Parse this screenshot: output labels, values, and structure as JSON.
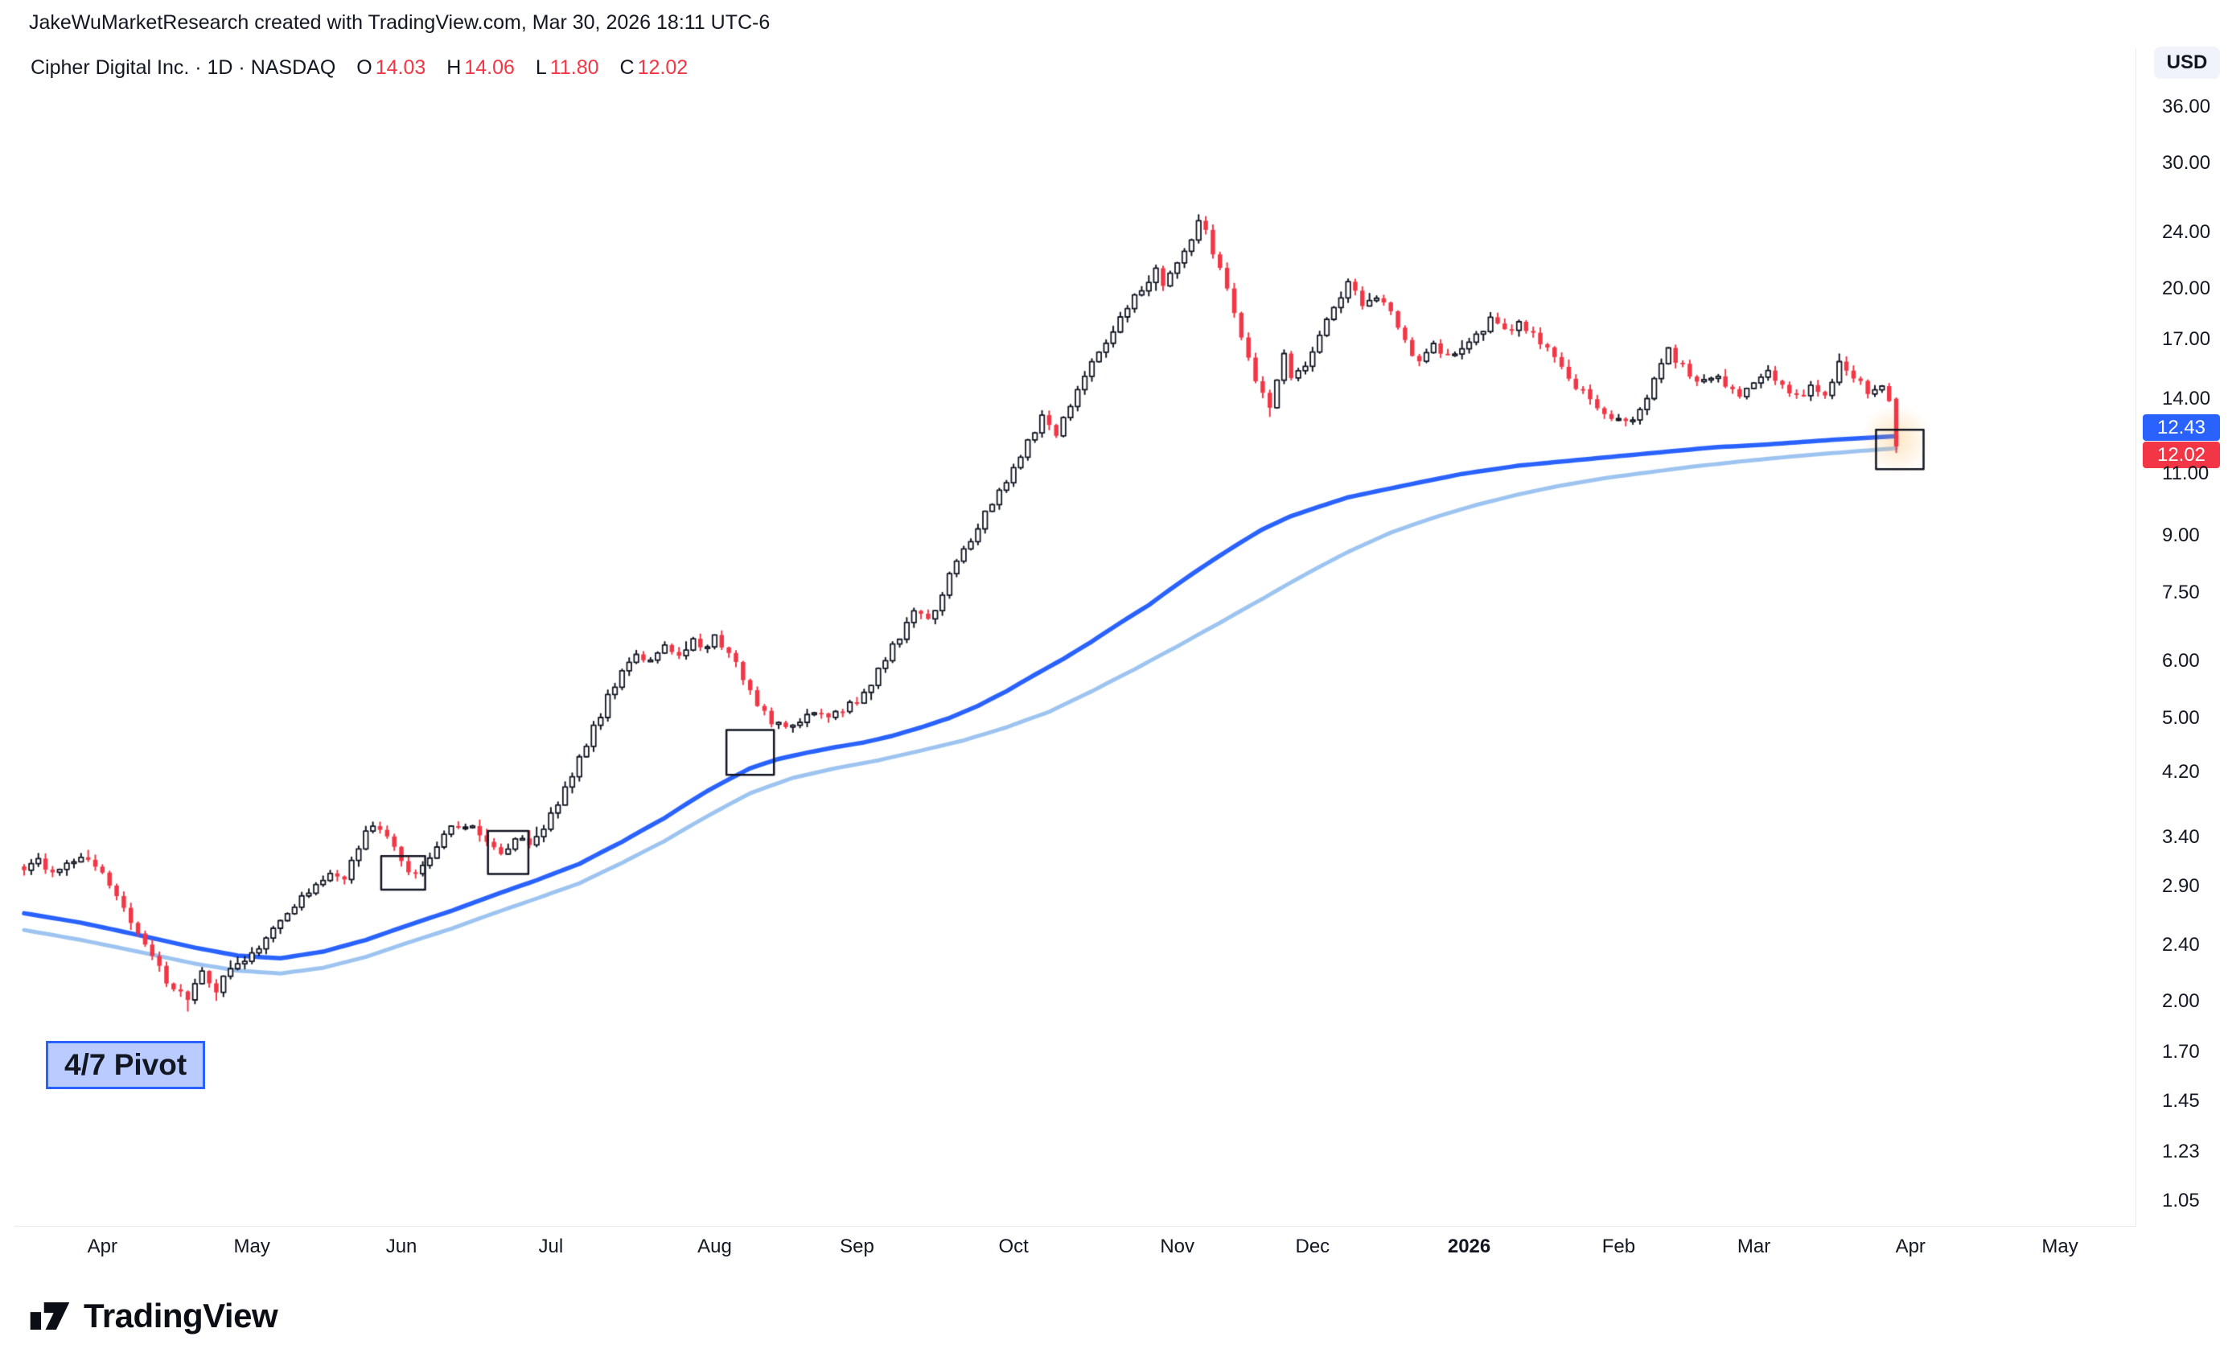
{
  "header": {
    "credit": "JakeWuMarketResearch created with TradingView.com, Mar 30, 2026 18:11 UTC-6"
  },
  "legend": {
    "title": "Cipher Digital Inc. · 1D · NASDAQ",
    "o_label": "O",
    "open": "14.03",
    "h_label": "H",
    "high": "14.06",
    "l_label": "L",
    "low": "11.80",
    "c_label": "C",
    "close": "12.02"
  },
  "price_axis": {
    "currency": "USD",
    "badges": [
      {
        "label": "12.43",
        "color": "#2962ff",
        "value": 12.43
      },
      {
        "label": "12.02",
        "color": "#f23645",
        "value": 12.02
      }
    ]
  },
  "time_axis": {
    "labels": [
      {
        "d": 11,
        "label": "Apr"
      },
      {
        "d": 32,
        "label": "May"
      },
      {
        "d": 53,
        "label": "Jun"
      },
      {
        "d": 74,
        "label": "Jul"
      },
      {
        "d": 97,
        "label": "Aug"
      },
      {
        "d": 117,
        "label": "Sep"
      },
      {
        "d": 139,
        "label": "Oct"
      },
      {
        "d": 162,
        "label": "Nov"
      },
      {
        "d": 181,
        "label": "Dec"
      },
      {
        "d": 203,
        "label": "2026",
        "bold": true
      },
      {
        "d": 224,
        "label": "Feb"
      },
      {
        "d": 243,
        "label": "Mar"
      },
      {
        "d": 265,
        "label": "Apr"
      },
      {
        "d": 286,
        "label": "May"
      }
    ]
  },
  "annotations": {
    "pivot_label": "4/7 Pivot",
    "boxes": [
      {
        "d1": 50.5,
        "d2": 56,
        "p1": 2.87,
        "p2": 3.2
      },
      {
        "d1": 65.5,
        "d2": 70.5,
        "p1": 3.02,
        "p2": 3.47
      },
      {
        "d1": 99,
        "d2": 105,
        "p1": 4.16,
        "p2": 4.81
      },
      {
        "d1": 260.5,
        "d2": 266.5,
        "p1": 11.17,
        "p2": 12.69
      }
    ]
  },
  "footer": {
    "brand": "TradingView"
  },
  "chart_data": {
    "type": "candlestick",
    "title": "Cipher Digital Inc. · 1D · NASDAQ",
    "price_scale": "log",
    "currency": "USD",
    "days": 264,
    "x_unit": "trading_day_index_from_2025-03-17",
    "ylim": [
      1.0,
      43.0
    ],
    "price_ticks": [
      [
        36,
        "36.00"
      ],
      [
        30,
        "30.00"
      ],
      [
        24,
        "24.00"
      ],
      [
        20,
        "20.00"
      ],
      [
        17,
        "17.00"
      ],
      [
        14,
        "14.00"
      ],
      [
        11,
        "11.00"
      ],
      [
        9,
        "9.00"
      ],
      [
        7.5,
        "7.50"
      ],
      [
        6,
        "6.00"
      ],
      [
        5,
        "5.00"
      ],
      [
        4.2,
        "4.20"
      ],
      [
        3.4,
        "3.40"
      ],
      [
        2.9,
        "2.90"
      ],
      [
        2.4,
        "2.40"
      ],
      [
        2,
        "2.00"
      ],
      [
        1.7,
        "1.70"
      ],
      [
        1.45,
        "1.45"
      ],
      [
        1.23,
        "1.23"
      ],
      [
        1.05,
        "1.05"
      ]
    ],
    "ohlc_last_bar": {
      "open": 14.03,
      "high": 14.06,
      "low": 11.8,
      "close": 12.02
    },
    "close_path": [
      [
        0,
        3.05
      ],
      [
        2,
        3.18
      ],
      [
        4,
        3.0
      ],
      [
        6,
        3.1
      ],
      [
        8,
        3.22
      ],
      [
        10,
        3.08
      ],
      [
        12,
        2.92
      ],
      [
        14,
        2.72
      ],
      [
        16,
        2.48
      ],
      [
        18,
        2.3
      ],
      [
        20,
        2.14
      ],
      [
        23,
        2.02
      ],
      [
        25,
        2.18
      ],
      [
        27,
        2.08
      ],
      [
        29,
        2.22
      ],
      [
        32,
        2.32
      ],
      [
        35,
        2.52
      ],
      [
        38,
        2.72
      ],
      [
        41,
        2.92
      ],
      [
        43,
        3.06
      ],
      [
        45,
        2.96
      ],
      [
        47,
        3.32
      ],
      [
        49,
        3.56
      ],
      [
        51,
        3.42
      ],
      [
        53,
        3.12
      ],
      [
        55,
        3.03
      ],
      [
        57,
        3.2
      ],
      [
        59,
        3.4
      ],
      [
        61,
        3.56
      ],
      [
        63,
        3.48
      ],
      [
        65,
        3.34
      ],
      [
        67,
        3.22
      ],
      [
        69,
        3.4
      ],
      [
        71,
        3.32
      ],
      [
        74,
        3.64
      ],
      [
        76,
        3.96
      ],
      [
        78,
        4.36
      ],
      [
        80,
        4.82
      ],
      [
        82,
        5.32
      ],
      [
        84,
        5.82
      ],
      [
        86,
        6.12
      ],
      [
        88,
        6.05
      ],
      [
        90,
        6.28
      ],
      [
        92,
        6.15
      ],
      [
        94,
        6.42
      ],
      [
        96,
        6.3
      ],
      [
        97,
        6.52
      ],
      [
        99,
        6.2
      ],
      [
        101,
        5.72
      ],
      [
        103,
        5.22
      ],
      [
        105,
        4.95
      ],
      [
        107,
        4.8
      ],
      [
        109,
        4.92
      ],
      [
        111,
        5.06
      ],
      [
        113,
        4.96
      ],
      [
        115,
        5.12
      ],
      [
        117,
        5.32
      ],
      [
        119,
        5.62
      ],
      [
        121,
        6.02
      ],
      [
        123,
        6.52
      ],
      [
        125,
        7.12
      ],
      [
        127,
        6.82
      ],
      [
        129,
        7.52
      ],
      [
        131,
        8.22
      ],
      [
        133,
        8.92
      ],
      [
        135,
        9.62
      ],
      [
        137,
        10.42
      ],
      [
        139,
        11.22
      ],
      [
        141,
        12.22
      ],
      [
        143,
        13.22
      ],
      [
        145,
        12.42
      ],
      [
        147,
        13.82
      ],
      [
        149,
        15.02
      ],
      [
        151,
        16.22
      ],
      [
        153,
        17.52
      ],
      [
        155,
        18.82
      ],
      [
        157,
        20.02
      ],
      [
        159,
        21.22
      ],
      [
        160,
        20.02
      ],
      [
        162,
        21.52
      ],
      [
        164,
        23.52
      ],
      [
        165,
        24.82
      ],
      [
        166,
        24.02
      ],
      [
        167,
        22.52
      ],
      [
        169,
        20.02
      ],
      [
        171,
        17.02
      ],
      [
        173,
        14.82
      ],
      [
        175,
        13.62
      ],
      [
        176,
        15.02
      ],
      [
        177,
        16.02
      ],
      [
        178,
        14.82
      ],
      [
        180,
        15.52
      ],
      [
        181,
        16.52
      ],
      [
        183,
        18.02
      ],
      [
        185,
        19.52
      ],
      [
        186,
        20.32
      ],
      [
        188,
        19.02
      ],
      [
        190,
        19.62
      ],
      [
        192,
        18.42
      ],
      [
        194,
        16.82
      ],
      [
        196,
        15.62
      ],
      [
        198,
        16.62
      ],
      [
        200,
        16.02
      ],
      [
        202,
        16.62
      ],
      [
        204,
        17.22
      ],
      [
        206,
        18.02
      ],
      [
        208,
        17.52
      ],
      [
        210,
        17.92
      ],
      [
        212,
        17.32
      ],
      [
        214,
        16.52
      ],
      [
        216,
        15.52
      ],
      [
        218,
        14.62
      ],
      [
        220,
        14.02
      ],
      [
        222,
        13.52
      ],
      [
        225,
        12.92
      ],
      [
        227,
        13.62
      ],
      [
        229,
        14.82
      ],
      [
        231,
        16.32
      ],
      [
        233,
        15.52
      ],
      [
        235,
        14.72
      ],
      [
        237,
        15.12
      ],
      [
        239,
        14.62
      ],
      [
        241,
        14.22
      ],
      [
        243,
        14.82
      ],
      [
        245,
        15.22
      ],
      [
        247,
        14.52
      ],
      [
        249,
        14.12
      ],
      [
        251,
        14.52
      ],
      [
        253,
        14.22
      ],
      [
        255,
        15.62
      ],
      [
        257,
        14.92
      ],
      [
        259,
        14.42
      ],
      [
        261,
        14.62
      ],
      [
        262,
        13.92
      ],
      [
        263,
        12.02
      ]
    ],
    "wick_overrides": [
      [
        23,
        "l",
        1.94
      ],
      [
        165,
        "h",
        25.4
      ],
      [
        175,
        "l",
        13.25
      ],
      [
        225,
        "l",
        12.85
      ],
      [
        255,
        "h",
        16.2
      ]
    ],
    "ma_fast": {
      "name": "moving-average-dark-blue",
      "color": "#2962ff",
      "last_value": 12.43,
      "points": [
        [
          0,
          2.66
        ],
        [
          8,
          2.58
        ],
        [
          16,
          2.48
        ],
        [
          24,
          2.38
        ],
        [
          30,
          2.32
        ],
        [
          36,
          2.3
        ],
        [
          42,
          2.35
        ],
        [
          48,
          2.44
        ],
        [
          54,
          2.56
        ],
        [
          60,
          2.68
        ],
        [
          66,
          2.82
        ],
        [
          72,
          2.96
        ],
        [
          78,
          3.12
        ],
        [
          84,
          3.35
        ],
        [
          90,
          3.62
        ],
        [
          96,
          3.95
        ],
        [
          102,
          4.25
        ],
        [
          106,
          4.38
        ],
        [
          110,
          4.47
        ],
        [
          114,
          4.55
        ],
        [
          118,
          4.62
        ],
        [
          122,
          4.72
        ],
        [
          126,
          4.85
        ],
        [
          130,
          5.0
        ],
        [
          134,
          5.2
        ],
        [
          138,
          5.45
        ],
        [
          142,
          5.75
        ],
        [
          146,
          6.05
        ],
        [
          150,
          6.4
        ],
        [
          154,
          6.8
        ],
        [
          158,
          7.2
        ],
        [
          162,
          7.7
        ],
        [
          166,
          8.2
        ],
        [
          170,
          8.7
        ],
        [
          174,
          9.2
        ],
        [
          178,
          9.6
        ],
        [
          182,
          9.9
        ],
        [
          186,
          10.2
        ],
        [
          190,
          10.4
        ],
        [
          194,
          10.6
        ],
        [
          198,
          10.8
        ],
        [
          202,
          11.0
        ],
        [
          206,
          11.15
        ],
        [
          210,
          11.3
        ],
        [
          214,
          11.4
        ],
        [
          218,
          11.5
        ],
        [
          222,
          11.6
        ],
        [
          226,
          11.7
        ],
        [
          230,
          11.8
        ],
        [
          234,
          11.9
        ],
        [
          238,
          12.0
        ],
        [
          242,
          12.05
        ],
        [
          246,
          12.12
        ],
        [
          250,
          12.2
        ],
        [
          254,
          12.28
        ],
        [
          258,
          12.35
        ],
        [
          263,
          12.43
        ]
      ]
    },
    "ma_slow": {
      "name": "moving-average-light-blue",
      "color": "#9dc4f0",
      "last_value": 11.95,
      "points": [
        [
          0,
          2.52
        ],
        [
          8,
          2.44
        ],
        [
          16,
          2.35
        ],
        [
          24,
          2.26
        ],
        [
          30,
          2.21
        ],
        [
          36,
          2.19
        ],
        [
          42,
          2.23
        ],
        [
          48,
          2.31
        ],
        [
          54,
          2.42
        ],
        [
          60,
          2.53
        ],
        [
          66,
          2.66
        ],
        [
          72,
          2.79
        ],
        [
          78,
          2.93
        ],
        [
          84,
          3.13
        ],
        [
          90,
          3.36
        ],
        [
          96,
          3.64
        ],
        [
          102,
          3.92
        ],
        [
          108,
          4.12
        ],
        [
          114,
          4.25
        ],
        [
          120,
          4.36
        ],
        [
          126,
          4.5
        ],
        [
          132,
          4.65
        ],
        [
          138,
          4.85
        ],
        [
          144,
          5.1
        ],
        [
          150,
          5.45
        ],
        [
          156,
          5.85
        ],
        [
          162,
          6.3
        ],
        [
          168,
          6.8
        ],
        [
          174,
          7.35
        ],
        [
          180,
          7.95
        ],
        [
          186,
          8.55
        ],
        [
          192,
          9.1
        ],
        [
          198,
          9.55
        ],
        [
          204,
          9.95
        ],
        [
          210,
          10.3
        ],
        [
          216,
          10.6
        ],
        [
          222,
          10.85
        ],
        [
          228,
          11.05
        ],
        [
          234,
          11.25
        ],
        [
          240,
          11.42
        ],
        [
          246,
          11.58
        ],
        [
          252,
          11.72
        ],
        [
          258,
          11.85
        ],
        [
          263,
          11.95
        ]
      ]
    },
    "candle_colors": {
      "up_fill": "#ffffff",
      "up_border": "#131722",
      "down": "#f23645"
    }
  }
}
